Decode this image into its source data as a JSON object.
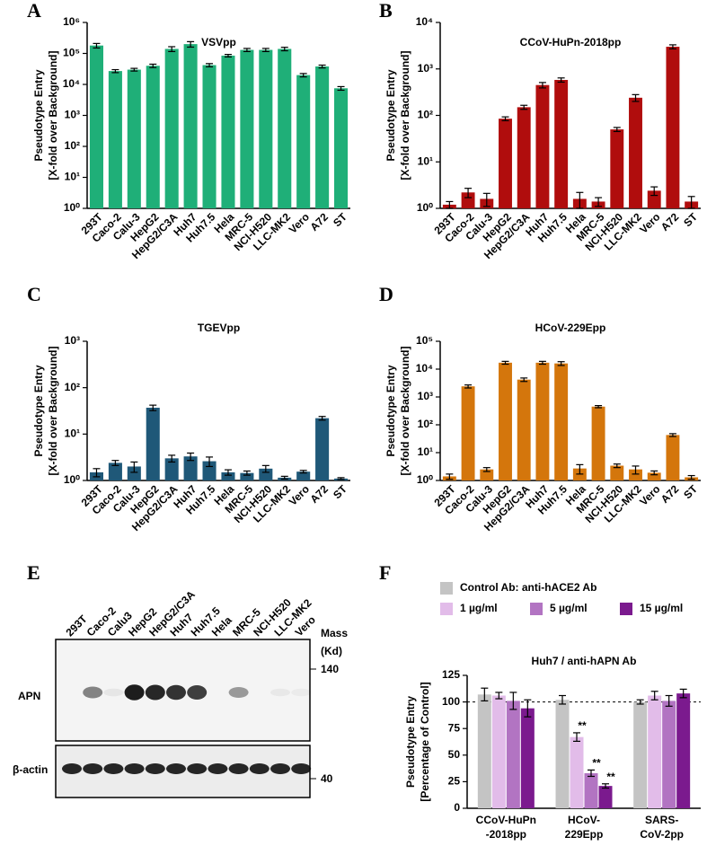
{
  "chart_data": [
    {
      "type": "bar",
      "panel": "A",
      "title": "VSVpp",
      "ylabel": [
        "Pseudotype Entry",
        "[X-fold over Background]"
      ],
      "categories": [
        "293T",
        "Caco-2",
        "Calu-3",
        "HepG2",
        "HepG2/C3A",
        "Huh7",
        "Huh7.5",
        "Hela",
        "MRC-5",
        "NCI-H520",
        "LLC-MK2",
        "Vero",
        "A72",
        "ST"
      ],
      "category_colors": [
        "#000000",
        "#000000",
        "#000000",
        "#000000",
        "#000000",
        "#000000",
        "#000000",
        "#000000",
        "#000000",
        "#000000",
        "#3a6ea5",
        "#3a6ea5",
        "#3a6ea5",
        "#3a6ea5"
      ],
      "values": [
        180000,
        27000,
        30000,
        40000,
        140000,
        200000,
        42000,
        85000,
        130000,
        130000,
        140000,
        20000,
        38000,
        7500
      ],
      "errors": [
        30000,
        3000,
        3000,
        5000,
        25000,
        40000,
        5000,
        8000,
        15000,
        15000,
        18000,
        2500,
        4000,
        1000
      ],
      "color": "#1faf78",
      "log_scale": true,
      "ylim": [
        1,
        1000000
      ],
      "yticks": [
        {
          "value": 1,
          "label": "10⁰"
        },
        {
          "value": 10,
          "label": "10¹"
        },
        {
          "value": 100,
          "label": "10²"
        },
        {
          "value": 1000,
          "label": "10³"
        },
        {
          "value": 10000,
          "label": "10⁴"
        },
        {
          "value": 100000,
          "label": "10⁵"
        },
        {
          "value": 1000000,
          "label": "10⁶"
        }
      ]
    },
    {
      "type": "bar",
      "panel": "B",
      "title": "CCoV-HuPn-2018pp",
      "ylabel": [
        "Pseudotype Entry",
        "[X-fold over Background]"
      ],
      "categories": [
        "293T",
        "Caco-2",
        "Calu-3",
        "HepG2",
        "HepG2/C3A",
        "Huh7",
        "Huh7.5",
        "Hela",
        "MRC-5",
        "NCI-H520",
        "LLC-MK2",
        "Vero",
        "A72",
        "ST"
      ],
      "category_colors": [
        "#000000",
        "#000000",
        "#000000",
        "#000000",
        "#000000",
        "#000000",
        "#000000",
        "#000000",
        "#000000",
        "#000000",
        "#3a6ea5",
        "#3a6ea5",
        "#3a6ea5",
        "#3a6ea5"
      ],
      "values": [
        1.2,
        2.2,
        1.6,
        85,
        150,
        450,
        580,
        1.6,
        1.4,
        50,
        240,
        2.4,
        3000,
        1.4
      ],
      "errors": [
        0.2,
        0.5,
        0.5,
        8,
        15,
        60,
        60,
        0.6,
        0.3,
        5,
        40,
        0.5,
        300,
        0.4
      ],
      "color": "#b00d0d",
      "log_scale": true,
      "ylim": [
        1,
        10000
      ],
      "yticks": [
        {
          "value": 1,
          "label": "10⁰"
        },
        {
          "value": 10,
          "label": "10¹"
        },
        {
          "value": 100,
          "label": "10²"
        },
        {
          "value": 1000,
          "label": "10³"
        },
        {
          "value": 10000,
          "label": "10⁴"
        }
      ]
    },
    {
      "type": "bar",
      "panel": "C",
      "title": "TGEVpp",
      "ylabel": [
        "Pseudotype Entry",
        "[X-fold over Background]"
      ],
      "categories": [
        "293T",
        "Caco-2",
        "Calu-3",
        "HepG2",
        "HepG2/C3A",
        "Huh7",
        "Huh7.5",
        "Hela",
        "MRC-5",
        "NCI-H520",
        "LLC-MK2",
        "Vero",
        "A72",
        "ST"
      ],
      "category_colors": [
        "#000000",
        "#000000",
        "#000000",
        "#000000",
        "#000000",
        "#000000",
        "#000000",
        "#000000",
        "#000000",
        "#000000",
        "#3a6ea5",
        "#3a6ea5",
        "#3a6ea5",
        "#3a6ea5"
      ],
      "values": [
        1.5,
        2.4,
        2.0,
        37,
        3.0,
        3.3,
        2.6,
        1.5,
        1.45,
        1.8,
        1.15,
        1.55,
        22,
        1.1
      ],
      "errors": [
        0.3,
        0.3,
        0.5,
        5,
        0.5,
        0.6,
        0.6,
        0.2,
        0.15,
        0.3,
        0.08,
        0.1,
        2,
        0.05
      ],
      "color": "#1f5878",
      "log_scale": true,
      "ylim": [
        1,
        1000
      ],
      "yticks": [
        {
          "value": 1,
          "label": "10⁰"
        },
        {
          "value": 10,
          "label": "10¹"
        },
        {
          "value": 100,
          "label": "10²"
        },
        {
          "value": 1000,
          "label": "10³"
        }
      ]
    },
    {
      "type": "bar",
      "panel": "D",
      "title": "HCoV-229Epp",
      "ylabel": [
        "Pseudotype Entry",
        "[X-fold over Background]"
      ],
      "categories": [
        "293T",
        "Caco-2",
        "Calu-3",
        "HepG2",
        "HepG2/C3A",
        "Huh7",
        "Huh7.5",
        "Hela",
        "MRC-5",
        "NCI-H520",
        "LLC-MK2",
        "Vero",
        "A72",
        "ST"
      ],
      "category_colors": [
        "#000000",
        "#000000",
        "#000000",
        "#000000",
        "#000000",
        "#000000",
        "#000000",
        "#000000",
        "#000000",
        "#000000",
        "#3a6ea5",
        "#3a6ea5",
        "#3a6ea5",
        "#3a6ea5"
      ],
      "values": [
        1.4,
        2400,
        2.5,
        17000,
        4200,
        17000,
        16000,
        2.7,
        450,
        3.4,
        2.5,
        1.9,
        43,
        1.3
      ],
      "errors": [
        0.3,
        300,
        0.4,
        2000,
        600,
        2000,
        2500,
        1,
        40,
        0.5,
        0.8,
        0.3,
        5,
        0.2
      ],
      "color": "#d4760c",
      "log_scale": true,
      "ylim": [
        1,
        100000
      ],
      "yticks": [
        {
          "value": 1,
          "label": "10⁰"
        },
        {
          "value": 10,
          "label": "10¹"
        },
        {
          "value": 100,
          "label": "10²"
        },
        {
          "value": 1000,
          "label": "10³"
        },
        {
          "value": 10000,
          "label": "10⁴"
        },
        {
          "value": 100000,
          "label": "10⁵"
        }
      ]
    },
    {
      "type": "bar",
      "panel": "F",
      "title": "Huh7 / anti-hAPN  Ab",
      "ylabel": [
        "Pseudotype Entry",
        "[Percentage of Control]"
      ],
      "categories": [
        [
          "CCoV-HuPn",
          "-2018pp"
        ],
        [
          "HCoV-",
          "229Epp"
        ],
        [
          "SARS-",
          "CoV-2pp"
        ]
      ],
      "series": [
        {
          "name": "Control Ab: anti-hACE2 Ab",
          "color": "#c4c4c4",
          "values": [
            107,
            102,
            100
          ],
          "errors": [
            6,
            4,
            2
          ],
          "significance": [
            null,
            null,
            null
          ]
        },
        {
          "name": "1 µg/ml",
          "color": "#e2bce9",
          "values": [
            106,
            67,
            106
          ],
          "errors": [
            3,
            4,
            4
          ],
          "significance": [
            null,
            "**",
            null
          ]
        },
        {
          "name": "5 µg/ml",
          "color": "#b274c2",
          "values": [
            101,
            33,
            101
          ],
          "errors": [
            8,
            3,
            5
          ],
          "significance": [
            null,
            "**",
            null
          ]
        },
        {
          "name": "15 µg/ml",
          "color": "#7b1a8e",
          "values": [
            94,
            21,
            108
          ],
          "errors": [
            8,
            2,
            4
          ],
          "significance": [
            null,
            "**",
            null
          ]
        }
      ],
      "ylim": [
        0,
        125
      ],
      "yticks": [
        0,
        25,
        50,
        75,
        100,
        125
      ],
      "reference_line": 100
    }
  ],
  "blot": {
    "panel": "E",
    "lanes": [
      "293T",
      "Caco-2",
      "Calu3",
      "HepG2",
      "HepG2/C3A",
      "Huh7",
      "Huh7.5",
      "Hela",
      "MRC-5",
      "NCI-H520",
      "LLC-MK2",
      "Vero"
    ],
    "lane_colors": [
      "#000000",
      "#000000",
      "#000000",
      "#000000",
      "#000000",
      "#000000",
      "#000000",
      "#000000",
      "#000000",
      "#000000",
      "#3a6ea5",
      "#3a6ea5"
    ],
    "rows": [
      "APN",
      "β-actin"
    ],
    "mass_title": [
      "Mass",
      "(Kd)"
    ],
    "masses": [
      "140",
      "40"
    ]
  }
}
